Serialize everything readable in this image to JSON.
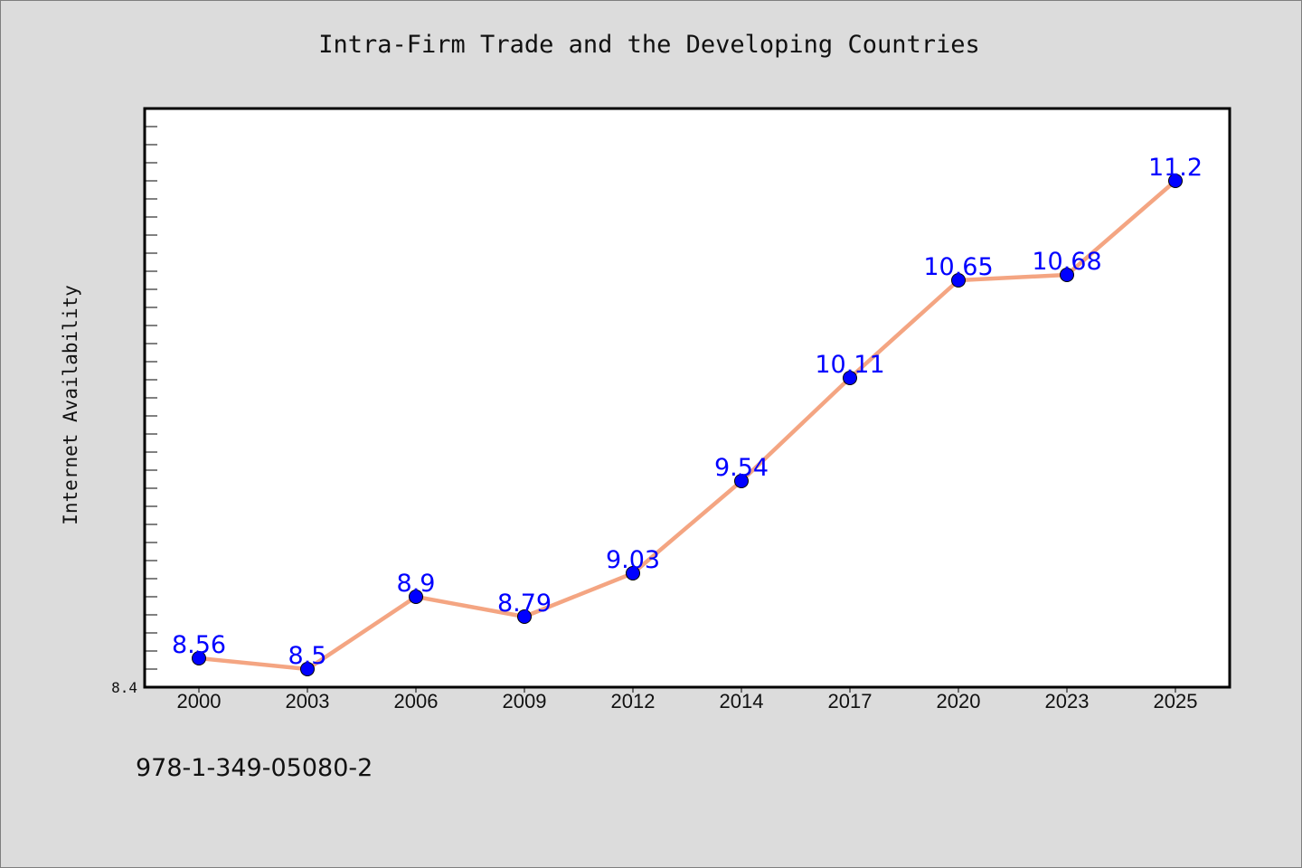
{
  "title": "Intra-Firm Trade and the Developing Countries",
  "footer": "978-1-349-05080-2",
  "chart_data": {
    "type": "line",
    "title": "Intra-Firm Trade and the Developing Countries",
    "xlabel": "",
    "ylabel": "Internet Availability",
    "categories": [
      "2000",
      "2003",
      "2006",
      "2009",
      "2012",
      "2014",
      "2017",
      "2020",
      "2023",
      "2025"
    ],
    "series": [
      {
        "values": [
          8.56,
          8.5,
          8.9,
          8.79,
          9.03,
          9.54,
          10.11,
          10.65,
          10.68,
          11.2
        ]
      }
    ],
    "data_labels": [
      "8.56",
      "8.5",
      "8.9",
      "8.79",
      "9.03",
      "9.54",
      "10.11",
      "10.65",
      "10.68",
      "11.2"
    ],
    "ylim": [
      8.4,
      11.6
    ],
    "y_tick_labels": [
      "8.4"
    ],
    "grid": false,
    "legend": "none",
    "colors": {
      "line": "#f4a582",
      "marker": "#0000ff",
      "label": "#0000ff",
      "background": "#dcdcdc",
      "plot_background": "#ffffff"
    }
  }
}
